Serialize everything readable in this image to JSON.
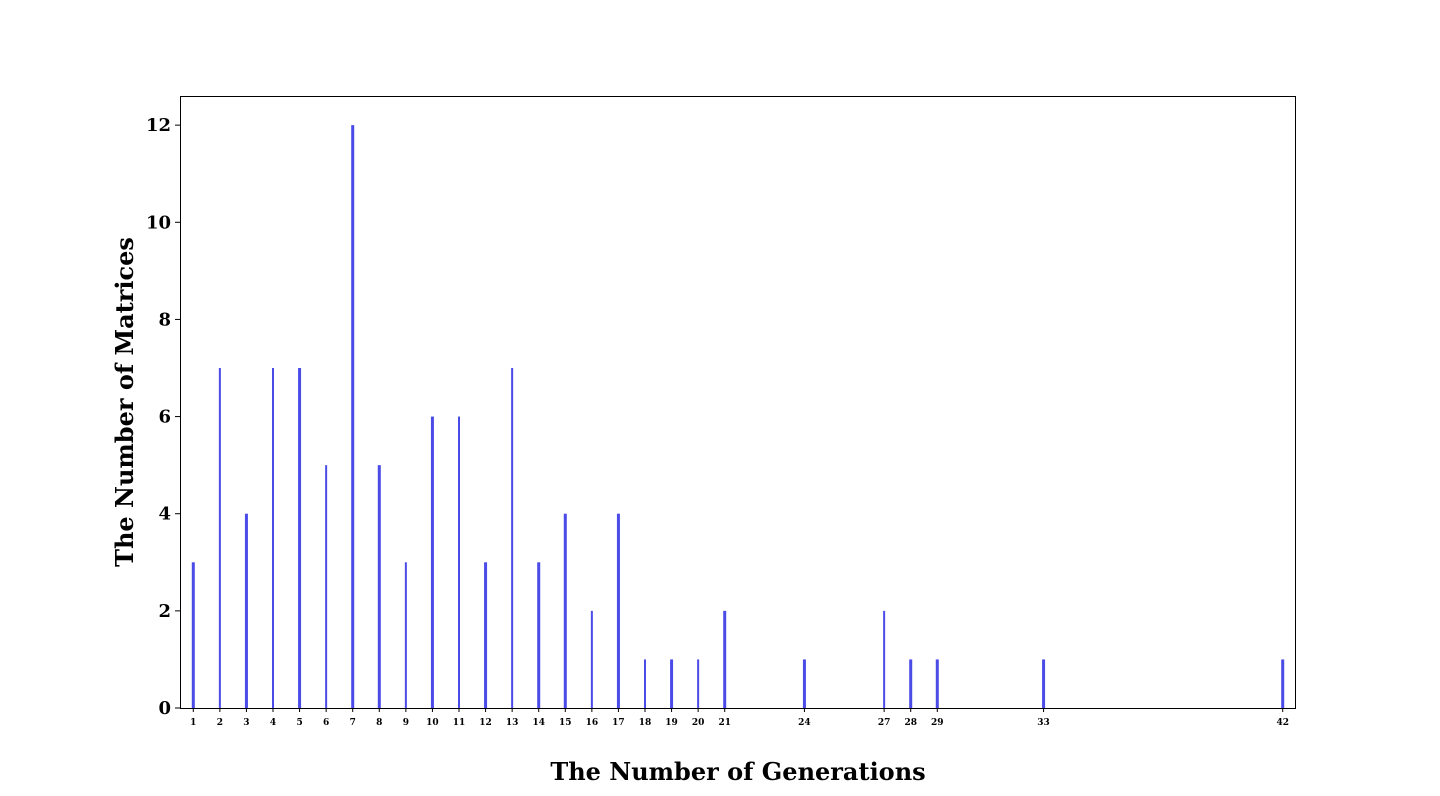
{
  "chart_data": {
    "type": "bar",
    "title": "",
    "xlabel": "The Number of Generations",
    "ylabel": "The Number of Matrices",
    "x": [
      1,
      2,
      3,
      4,
      5,
      6,
      7,
      8,
      9,
      10,
      11,
      12,
      13,
      14,
      15,
      16,
      17,
      18,
      19,
      20,
      21,
      24,
      27,
      28,
      29,
      33,
      42
    ],
    "values": [
      3,
      7,
      4,
      7,
      7,
      5,
      12,
      5,
      3,
      6,
      6,
      3,
      7,
      3,
      4,
      2,
      4,
      1,
      1,
      1,
      2,
      1,
      2,
      1,
      1,
      1,
      1
    ],
    "bar_widths": [
      "thick",
      "thin",
      "thick",
      "thin",
      "thick",
      "thin",
      "thick",
      "thick",
      "thin",
      "thick",
      "thin",
      "thick",
      "thin",
      "thick",
      "thick",
      "thin",
      "thick",
      "thin",
      "thick",
      "thin",
      "thick",
      "thick",
      "thin",
      "thick",
      "thick",
      "thick",
      "thick"
    ],
    "xticks": [
      "1",
      "2",
      "3",
      "4",
      "5",
      "6",
      "7",
      "8",
      "9",
      "10",
      "11",
      "12",
      "13",
      "14",
      "15",
      "16",
      "17",
      "18",
      "19",
      "20",
      "21",
      "24",
      "27",
      "28",
      "29",
      "33",
      "42"
    ],
    "yticks": [
      "0",
      "2",
      "4",
      "6",
      "8",
      "10",
      "12"
    ],
    "xlim": [
      0.5,
      42.5
    ],
    "ylim": [
      0,
      12.6
    ],
    "grid": false,
    "legend": "none",
    "bar_color": "#4b4be8"
  }
}
